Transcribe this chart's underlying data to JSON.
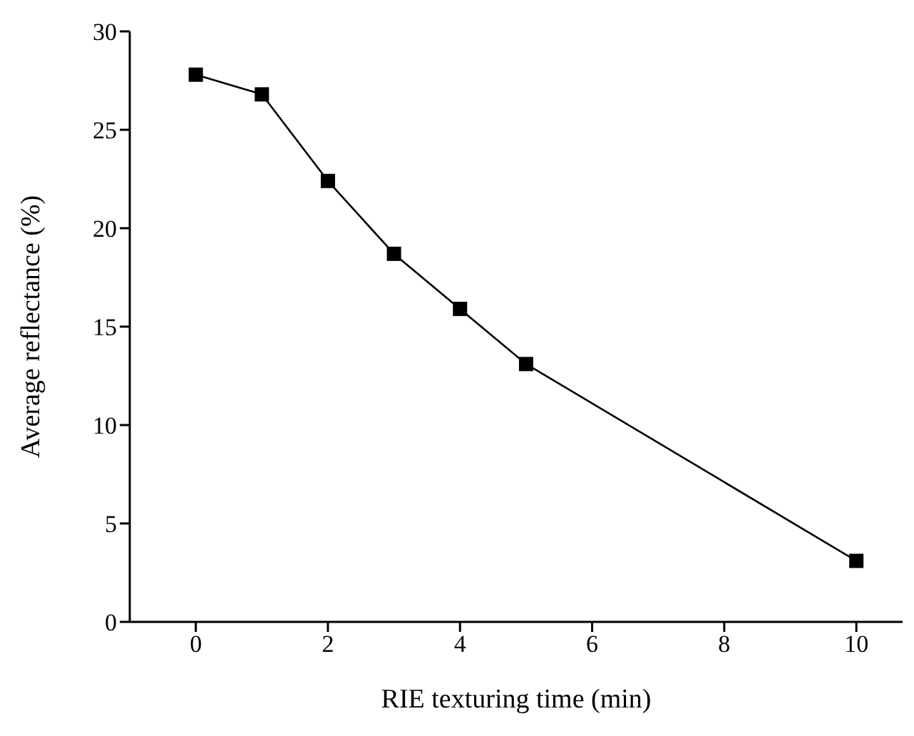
{
  "chart_data": {
    "type": "line",
    "xlabel": "RIE texturing time (min)",
    "ylabel": "Average reflectance (%)",
    "x": [
      0,
      1,
      2,
      3,
      4,
      5,
      10
    ],
    "series": [
      {
        "color": "#000000",
        "values": [
          27.8,
          26.8,
          22.4,
          18.7,
          15.9,
          13.1,
          3.1
        ]
      }
    ],
    "xlim": [
      -1,
      10.7
    ],
    "xticks": [
      0,
      2,
      4,
      6,
      8,
      10
    ],
    "ylim": [
      0,
      30
    ],
    "yticks": [
      0,
      5,
      10,
      15,
      20,
      25,
      30
    ],
    "grid": false,
    "legend": false,
    "marker": "square",
    "line_style": "solid"
  }
}
